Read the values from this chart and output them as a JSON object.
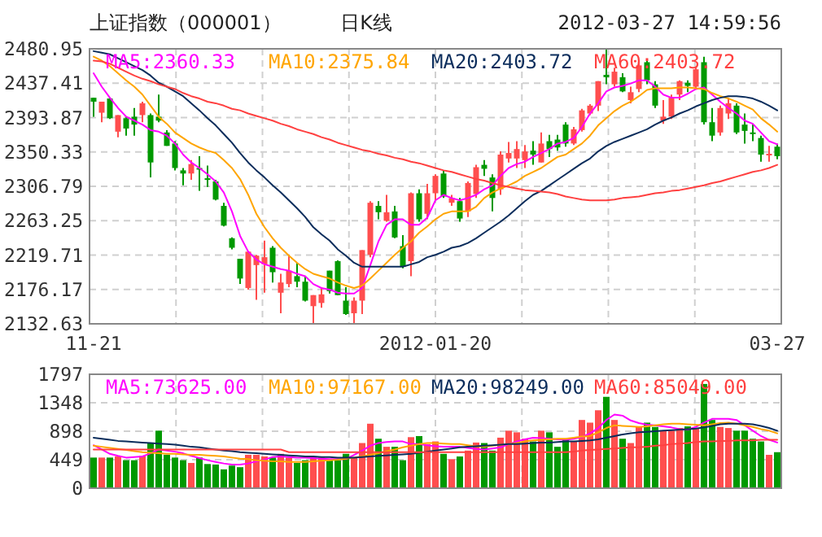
{
  "chart_data": [
    {
      "type": "candlestick",
      "title": "上证指数（000001）",
      "subtitle": "日K线",
      "annotations": [
        "2012-03-27 14:59:56"
      ],
      "categories": [
        "11-21",
        null,
        null,
        null,
        null,
        null,
        null,
        null,
        null,
        null,
        null,
        null,
        null,
        null,
        null,
        null,
        null,
        null,
        null,
        null,
        null,
        null,
        null,
        null,
        null,
        null,
        null,
        null,
        null,
        null,
        null,
        null,
        null,
        null,
        null,
        null,
        null,
        null,
        null,
        null,
        null,
        null,
        "2012-01-20",
        null,
        null,
        null,
        null,
        null,
        null,
        null,
        null,
        null,
        null,
        null,
        null,
        null,
        null,
        null,
        null,
        null,
        null,
        null,
        null,
        null,
        null,
        null,
        null,
        null,
        null,
        null,
        null,
        null,
        null,
        null,
        null,
        null,
        null,
        null,
        null,
        null,
        null,
        null,
        null,
        null,
        "03-27"
      ],
      "ohlc": [
        [
          2419,
          2419,
          2395,
          2414
        ],
        [
          2400,
          2414,
          2388,
          2414
        ],
        [
          2418,
          2419,
          2392,
          2393
        ],
        [
          2376,
          2397,
          2369,
          2397
        ],
        [
          2393,
          2395,
          2371,
          2380
        ],
        [
          2395,
          2406,
          2371,
          2385
        ],
        [
          2397,
          2414,
          2388,
          2412
        ],
        [
          2397,
          2399,
          2318,
          2337
        ],
        [
          2395,
          2423,
          2388,
          2390
        ],
        [
          2375,
          2378,
          2358,
          2358
        ],
        [
          2361,
          2364,
          2327,
          2330
        ],
        [
          2327,
          2330,
          2308,
          2323
        ],
        [
          2323,
          2340,
          2315,
          2335
        ],
        [
          2330,
          2345,
          2301,
          2328
        ],
        [
          2317,
          2333,
          2306,
          2316
        ],
        [
          2313,
          2315,
          2289,
          2290
        ],
        [
          2282,
          2286,
          2256,
          2257
        ],
        [
          2241,
          2242,
          2227,
          2229
        ],
        [
          2215,
          2215,
          2183,
          2190
        ],
        [
          2178,
          2224,
          2176,
          2224
        ],
        [
          2207,
          2220,
          2163,
          2219
        ],
        [
          2208,
          2238,
          2172,
          2217
        ],
        [
          2229,
          2231,
          2185,
          2198
        ],
        [
          2172,
          2196,
          2146,
          2185
        ],
        [
          2183,
          2220,
          2179,
          2200
        ],
        [
          2193,
          2210,
          2179,
          2186
        ],
        [
          2186,
          2193,
          2161,
          2162
        ],
        [
          2155,
          2169,
          2133,
          2169
        ],
        [
          2159,
          2179,
          2153,
          2170
        ],
        [
          2200,
          2200,
          2171,
          2174
        ],
        [
          2212,
          2213,
          2169,
          2169
        ],
        [
          2162,
          2179,
          2144,
          2145
        ],
        [
          2146,
          2166,
          2133,
          2162
        ],
        [
          2162,
          2226,
          2145,
          2226
        ],
        [
          2220,
          2288,
          2217,
          2286
        ],
        [
          2282,
          2288,
          2265,
          2274
        ],
        [
          2263,
          2296,
          2262,
          2274
        ],
        [
          2275,
          2282,
          2241,
          2242
        ],
        [
          2231,
          2245,
          2203,
          2205
        ],
        [
          2212,
          2299,
          2193,
          2298
        ],
        [
          2298,
          2303,
          2262,
          2265
        ],
        [
          2272,
          2310,
          2265,
          2298
        ],
        [
          2298,
          2322,
          2289,
          2320
        ],
        [
          2323,
          2327,
          2292,
          2294
        ],
        [
          2286,
          2296,
          2282,
          2292
        ],
        [
          2288,
          2292,
          2262,
          2266
        ],
        [
          2275,
          2313,
          2268,
          2311
        ],
        [
          2297,
          2334,
          2292,
          2331
        ],
        [
          2334,
          2340,
          2320,
          2329
        ],
        [
          2318,
          2322,
          2275,
          2292
        ],
        [
          2303,
          2351,
          2296,
          2347
        ],
        [
          2342,
          2363,
          2337,
          2349
        ],
        [
          2342,
          2364,
          2330,
          2354
        ],
        [
          2340,
          2359,
          2330,
          2351
        ],
        [
          2352,
          2364,
          2334,
          2347
        ],
        [
          2337,
          2375,
          2337,
          2361
        ],
        [
          2364,
          2372,
          2344,
          2354
        ],
        [
          2366,
          2372,
          2352,
          2356
        ],
        [
          2385,
          2388,
          2357,
          2361
        ],
        [
          2361,
          2382,
          2359,
          2379
        ],
        [
          2378,
          2405,
          2376,
          2403
        ],
        [
          2399,
          2411,
          2397,
          2409
        ],
        [
          2409,
          2440,
          2402,
          2440
        ],
        [
          2448,
          2480,
          2436,
          2445
        ],
        [
          2436,
          2457,
          2433,
          2452
        ],
        [
          2445,
          2450,
          2426,
          2427
        ],
        [
          2416,
          2433,
          2412,
          2426
        ],
        [
          2430,
          2464,
          2426,
          2460
        ],
        [
          2464,
          2466,
          2436,
          2441
        ],
        [
          2436,
          2440,
          2406,
          2409
        ],
        [
          2390,
          2416,
          2386,
          2395
        ],
        [
          2395,
          2423,
          2392,
          2419
        ],
        [
          2423,
          2441,
          2416,
          2440
        ],
        [
          2438,
          2441,
          2426,
          2434
        ],
        [
          2433,
          2457,
          2430,
          2455
        ],
        [
          2464,
          2471,
          2385,
          2388
        ],
        [
          2388,
          2406,
          2364,
          2371
        ],
        [
          2375,
          2409,
          2371,
          2406
        ],
        [
          2399,
          2419,
          2392,
          2412
        ],
        [
          2409,
          2412,
          2373,
          2375
        ],
        [
          2385,
          2399,
          2361,
          2377
        ],
        [
          2375,
          2385,
          2364,
          2374
        ],
        [
          2368,
          2371,
          2338,
          2347
        ],
        [
          2347,
          2358,
          2338,
          2348
        ],
        [
          2357,
          2361,
          2341,
          2345
        ]
      ],
      "series": [
        {
          "type": "line",
          "name": "MA5:2360.33",
          "color": "#ff00ff",
          "values": [
            2450,
            2433,
            2419,
            2406,
            2395,
            2390,
            2385,
            2378,
            2376,
            2371,
            2361,
            2347,
            2337,
            2330,
            2322,
            2313,
            2299,
            2275,
            2244,
            2224,
            2214,
            2208,
            2205,
            2202,
            2200,
            2196,
            2193,
            2183,
            2178,
            2176,
            2172,
            2171,
            2171,
            2178,
            2207,
            2237,
            2258,
            2265,
            2265,
            2258,
            2258,
            2267,
            2289,
            2296,
            2292,
            2289,
            2292,
            2296,
            2303,
            2308,
            2320,
            2330,
            2335,
            2338,
            2344,
            2349,
            2354,
            2361,
            2363,
            2368,
            2382,
            2399,
            2412,
            2427,
            2432,
            2434,
            2437,
            2441,
            2441,
            2433,
            2423,
            2419,
            2419,
            2424,
            2430,
            2432,
            2423,
            2414,
            2406,
            2399,
            2390,
            2386,
            2375,
            2364,
            2360
          ]
        },
        {
          "type": "line",
          "name": "MA10:2375.84",
          "color": "#ffa500",
          "values": [
            2471,
            2466,
            2459,
            2450,
            2441,
            2433,
            2423,
            2409,
            2395,
            2386,
            2375,
            2368,
            2361,
            2356,
            2352,
            2349,
            2340,
            2330,
            2316,
            2296,
            2272,
            2255,
            2241,
            2229,
            2219,
            2210,
            2202,
            2196,
            2193,
            2190,
            2185,
            2181,
            2178,
            2181,
            2190,
            2200,
            2210,
            2220,
            2229,
            2237,
            2248,
            2256,
            2265,
            2272,
            2275,
            2275,
            2275,
            2281,
            2292,
            2299,
            2304,
            2308,
            2313,
            2320,
            2325,
            2330,
            2337,
            2344,
            2347,
            2354,
            2361,
            2371,
            2384,
            2393,
            2402,
            2409,
            2414,
            2421,
            2429,
            2431,
            2431,
            2431,
            2432,
            2432,
            2431,
            2430,
            2425,
            2421,
            2418,
            2414,
            2409,
            2404,
            2393,
            2385,
            2376
          ]
        },
        {
          "type": "line",
          "name": "MA20:2403.72",
          "color": "#0b2d5c",
          "values": [
            2478,
            2476,
            2474,
            2469,
            2464,
            2459,
            2454,
            2447,
            2438,
            2433,
            2427,
            2421,
            2412,
            2403,
            2393,
            2384,
            2373,
            2362,
            2349,
            2337,
            2327,
            2318,
            2308,
            2299,
            2289,
            2279,
            2268,
            2255,
            2246,
            2238,
            2227,
            2219,
            2210,
            2205,
            2205,
            2205,
            2205,
            2205,
            2205,
            2208,
            2211,
            2217,
            2220,
            2224,
            2229,
            2231,
            2235,
            2241,
            2248,
            2255,
            2262,
            2270,
            2279,
            2288,
            2296,
            2301,
            2308,
            2315,
            2322,
            2329,
            2336,
            2342,
            2351,
            2358,
            2363,
            2367,
            2371,
            2375,
            2379,
            2385,
            2390,
            2394,
            2399,
            2403,
            2408,
            2412,
            2416,
            2419,
            2421,
            2421,
            2420,
            2418,
            2414,
            2409,
            2403
          ]
        },
        {
          "type": "line",
          "name": "MA60:2403.72",
          "color": "#ff4040",
          "values": [
            2466,
            2465,
            2462,
            2457,
            2452,
            2447,
            2443,
            2440,
            2436,
            2433,
            2430,
            2425,
            2421,
            2418,
            2414,
            2412,
            2409,
            2405,
            2403,
            2399,
            2396,
            2393,
            2390,
            2386,
            2383,
            2379,
            2376,
            2373,
            2369,
            2366,
            2362,
            2359,
            2356,
            2353,
            2351,
            2348,
            2346,
            2343,
            2341,
            2338,
            2336,
            2333,
            2330,
            2327,
            2325,
            2322,
            2319,
            2316,
            2314,
            2311,
            2308,
            2306,
            2304,
            2302,
            2301,
            2300,
            2299,
            2297,
            2294,
            2292,
            2290,
            2289,
            2289,
            2289,
            2290,
            2292,
            2293,
            2294,
            2296,
            2298,
            2299,
            2301,
            2302,
            2304,
            2306,
            2308,
            2311,
            2313,
            2316,
            2319,
            2322,
            2325,
            2327,
            2330,
            2334
          ]
        }
      ],
      "ylim": [
        2132.63,
        2480.95
      ],
      "yticks": [
        2132.63,
        2176.17,
        2219.71,
        2263.25,
        2306.79,
        2350.33,
        2393.87,
        2437.41,
        2480.95
      ],
      "grid": true,
      "legend": "top"
    },
    {
      "type": "bar",
      "categories": [
        null,
        null,
        null,
        null,
        null,
        null,
        null,
        null,
        null,
        null,
        null,
        null,
        null,
        null,
        null,
        null,
        null,
        null,
        null,
        null,
        null,
        null,
        null,
        null,
        null,
        null,
        null,
        null,
        null,
        null,
        null,
        null,
        null,
        null,
        null,
        null,
        null,
        null,
        null,
        null,
        null,
        null,
        null,
        null,
        null,
        null,
        null,
        null,
        null,
        null,
        null,
        null,
        null,
        null,
        null,
        null,
        null,
        null,
        null,
        null,
        null,
        null,
        null,
        null,
        null,
        null,
        null,
        null,
        null,
        null,
        null,
        null,
        null,
        null,
        null,
        null,
        null,
        null,
        null,
        null,
        null,
        null,
        null,
        null,
        null
      ],
      "series": [
        {
          "values": [
            483,
            483,
            483,
            500,
            441,
            441,
            509,
            712,
            907,
            526,
            483,
            441,
            398,
            483,
            381,
            373,
            297,
            356,
            331,
            526,
            526,
            500,
            483,
            542,
            483,
            398,
            441,
            483,
            483,
            441,
            441,
            542,
            483,
            712,
            1017,
            780,
            653,
            653,
            441,
            805,
            822,
            695,
            737,
            542,
            458,
            500,
            593,
            720,
            712,
            593,
            797,
            907,
            881,
            780,
            737,
            907,
            881,
            653,
            763,
            737,
            1076,
            1034,
            1229,
            1441,
            1076,
            780,
            712,
            966,
            1034,
            966,
            907,
            907,
            949,
            975,
            949,
            1644,
            1076,
            966,
            949,
            907,
            907,
            780,
            737,
            526,
            568
          ],
          "colors": [
            "#009900",
            "#ff4e4e",
            "#009900",
            "#ff4e4e",
            "#009900",
            "#009900",
            "#ff4e4e",
            "#009900",
            "#009900",
            "#009900",
            "#009900",
            "#009900",
            "#ff4e4e",
            "#009900",
            "#009900",
            "#009900",
            "#009900",
            "#009900",
            "#009900",
            "#ff4e4e",
            "#ff4e4e",
            "#ff4e4e",
            "#009900",
            "#ff4e4e",
            "#ff4e4e",
            "#009900",
            "#009900",
            "#ff4e4e",
            "#ff4e4e",
            "#009900",
            "#009900",
            "#009900",
            "#ff4e4e",
            "#ff4e4e",
            "#ff4e4e",
            "#009900",
            "#ff4e4e",
            "#009900",
            "#009900",
            "#ff4e4e",
            "#009900",
            "#ff4e4e",
            "#ff4e4e",
            "#009900",
            "#ff4e4e",
            "#009900",
            "#ff4e4e",
            "#ff4e4e",
            "#009900",
            "#009900",
            "#ff4e4e",
            "#ff4e4e",
            "#ff4e4e",
            "#ff4e4e",
            "#009900",
            "#ff4e4e",
            "#009900",
            "#009900",
            "#009900",
            "#ff4e4e",
            "#ff4e4e",
            "#ff4e4e",
            "#ff4e4e",
            "#009900",
            "#ff4e4e",
            "#009900",
            "#ff4e4e",
            "#ff4e4e",
            "#009900",
            "#009900",
            "#ff4e4e",
            "#ff4e4e",
            "#ff4e4e",
            "#009900",
            "#ff4e4e",
            "#009900",
            "#009900",
            "#ff4e4e",
            "#ff4e4e",
            "#009900",
            "#009900",
            "#009900",
            "#009900",
            "#ff4e4e",
            "#009900"
          ]
        },
        {
          "type": "line",
          "name": "MA5:73625.00",
          "color": "#ff00ff",
          "values": [
            678,
            610,
            542,
            509,
            483,
            492,
            500,
            551,
            610,
            593,
            576,
            551,
            509,
            475,
            441,
            415,
            390,
            373,
            373,
            390,
            424,
            449,
            492,
            500,
            492,
            483,
            483,
            475,
            466,
            458,
            458,
            458,
            526,
            593,
            670,
            712,
            729,
            737,
            737,
            695,
            695,
            678,
            661,
            653,
            653,
            653,
            636,
            619,
            610,
            627,
            644,
            695,
            737,
            771,
            797,
            788,
            780,
            771,
            763,
            780,
            805,
            865,
            949,
            1076,
            1161,
            1144,
            1068,
            1026,
            1000,
            992,
            975,
            958,
            932,
            924,
            966,
            1034,
            1093,
            1093,
            1093,
            1076,
            992,
            907,
            822,
            763,
            720
          ]
        },
        {
          "type": "line",
          "name": "MA10:97167.00",
          "color": "#ffa500",
          "values": [
            670,
            653,
            636,
            619,
            602,
            585,
            568,
            559,
            551,
            542,
            542,
            534,
            526,
            526,
            517,
            509,
            500,
            483,
            466,
            458,
            441,
            432,
            424,
            424,
            415,
            415,
            415,
            424,
            432,
            441,
            449,
            466,
            483,
            500,
            526,
            551,
            585,
            610,
            644,
            670,
            695,
            712,
            712,
            704,
            695,
            695,
            678,
            661,
            653,
            670,
            687,
            695,
            712,
            737,
            754,
            763,
            771,
            780,
            780,
            797,
            814,
            822,
            881,
            949,
            992,
            983,
            975,
            966,
            975,
            992,
            1009,
            1017,
            1017,
            1009,
            1000,
            992,
            1009,
            1026,
            1034,
            1017,
            992,
            966,
            932,
            907,
            865
          ]
        },
        {
          "type": "line",
          "name": "MA20:98249.00",
          "color": "#0b2d5c",
          "values": [
            797,
            780,
            763,
            746,
            737,
            729,
            720,
            712,
            704,
            695,
            687,
            670,
            653,
            644,
            627,
            610,
            593,
            585,
            568,
            559,
            551,
            542,
            534,
            526,
            517,
            509,
            500,
            500,
            492,
            492,
            483,
            483,
            483,
            492,
            500,
            509,
            517,
            526,
            534,
            542,
            559,
            576,
            593,
            610,
            627,
            644,
            653,
            661,
            670,
            678,
            687,
            695,
            695,
            704,
            712,
            720,
            720,
            729,
            737,
            737,
            746,
            754,
            771,
            797,
            822,
            848,
            865,
            881,
            890,
            898,
            907,
            915,
            924,
            932,
            941,
            958,
            983,
            1009,
            1017,
            1017,
            1017,
            1009,
            983,
            949,
            907
          ]
        },
        {
          "type": "line",
          "name": "MA60:85049.00",
          "color": "#ff4040",
          "values": [
            610,
            610,
            610,
            610,
            610,
            610,
            610,
            610,
            610,
            610,
            610,
            610,
            610,
            610,
            610,
            610,
            610,
            610,
            610,
            610,
            610,
            610,
            610,
            610,
            568,
            568,
            568,
            568,
            568,
            568,
            568,
            568,
            568,
            568,
            568,
            568,
            568,
            568,
            568,
            568,
            568,
            568,
            568,
            568,
            568,
            568,
            568,
            568,
            568,
            568,
            568,
            568,
            568,
            568,
            568,
            568,
            568,
            568,
            568,
            576,
            593,
            602,
            610,
            619,
            627,
            636,
            644,
            644,
            653,
            670,
            678,
            695,
            704,
            712,
            729,
            737,
            737,
            746,
            746,
            754,
            754,
            754,
            763,
            763,
            763
          ]
        }
      ],
      "ylim": [
        0,
        1797
      ],
      "yticks": [
        0,
        449,
        898,
        1348,
        1797
      ],
      "grid": true,
      "legend": "top",
      "tick_labels": "y"
    }
  ]
}
